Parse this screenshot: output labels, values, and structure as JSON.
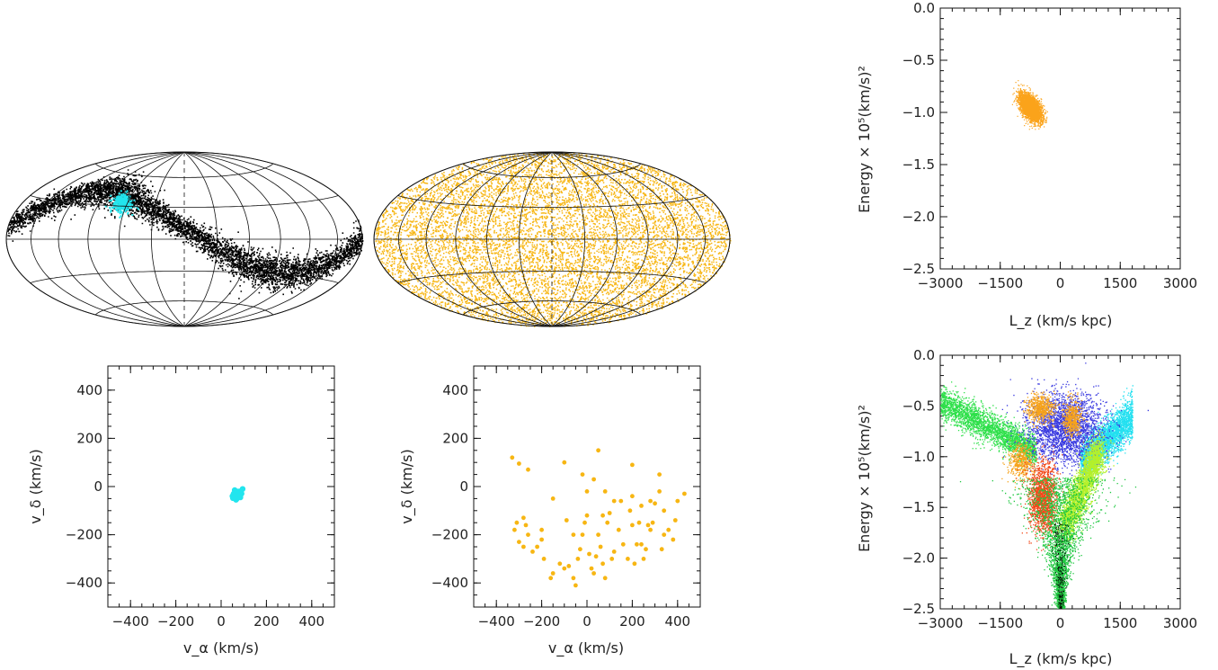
{
  "colors": {
    "black": "#000000",
    "cyan": "#22e5ee",
    "orange": "#f7b613",
    "dark_orange": "#fba31a"
  },
  "chart_data": [
    {
      "id": "sky-map-left",
      "type": "scatter",
      "projection": "Aitoff/Hammer equal-area all-sky",
      "grid": true,
      "series": [
        {
          "color": "#000000",
          "density": "dense",
          "shape": "sinusoidal stream band",
          "lon_lat_track": [
            [
              -180,
              10
            ],
            [
              -150,
              25
            ],
            [
              -120,
              40
            ],
            [
              -90,
              44
            ],
            [
              -60,
              40
            ],
            [
              -30,
              28
            ],
            [
              0,
              10
            ],
            [
              30,
              -8
            ],
            [
              60,
              -22
            ],
            [
              90,
              -28
            ],
            [
              120,
              -28
            ],
            [
              150,
              -18
            ],
            [
              180,
              2
            ]
          ]
        },
        {
          "color": "#22e5ee",
          "density": "small clump",
          "lon_lat_center": [
            -67,
            33
          ]
        }
      ]
    },
    {
      "id": "sky-map-right",
      "type": "scatter",
      "projection": "Aitoff/Hammer equal-area all-sky",
      "grid": true,
      "series": [
        {
          "color": "#f7b613",
          "density": "uniform over full sky"
        }
      ]
    },
    {
      "id": "velocity-left",
      "type": "scatter",
      "xlabel": "v_α (km/s)",
      "ylabel": "v_δ (km/s)",
      "xlim": [
        -500,
        500
      ],
      "ylim": [
        -500,
        500
      ],
      "xticks": [
        "−400",
        "−200",
        "0",
        "200",
        "400"
      ],
      "yticks": [
        "−400",
        "−200",
        "0",
        "200",
        "400"
      ],
      "series": [
        {
          "color": "#22e5ee",
          "points": [
            [
              55,
              -30
            ],
            [
              65,
              -25
            ],
            [
              75,
              -35
            ],
            [
              60,
              -45
            ],
            [
              80,
              -20
            ],
            [
              70,
              -50
            ],
            [
              50,
              -40
            ],
            [
              90,
              -30
            ],
            [
              85,
              -45
            ],
            [
              60,
              -15
            ],
            [
              72,
              -38
            ],
            [
              66,
              -55
            ],
            [
              58,
              -28
            ],
            [
              95,
              -10
            ],
            [
              78,
              -42
            ],
            [
              62,
              -33
            ],
            [
              88,
              -25
            ],
            [
              70,
              -20
            ],
            [
              52,
              -48
            ],
            [
              83,
              -36
            ]
          ]
        }
      ]
    },
    {
      "id": "velocity-right",
      "type": "scatter",
      "xlabel": "v_α (km/s)",
      "ylabel": "v_δ (km/s)",
      "xlim": [
        -500,
        500
      ],
      "ylim": [
        -500,
        500
      ],
      "xticks": [
        "−400",
        "−200",
        "0",
        "200",
        "400"
      ],
      "yticks": [
        "−400",
        "−200",
        "0",
        "200",
        "400"
      ],
      "series": [
        {
          "color": "#f7b613",
          "points": [
            [
              -330,
              120
            ],
            [
              -300,
              95
            ],
            [
              -260,
              70
            ],
            [
              -310,
              -150
            ],
            [
              -320,
              -180
            ],
            [
              -300,
              -230
            ],
            [
              -280,
              -250
            ],
            [
              -260,
              -200
            ],
            [
              -240,
              -270
            ],
            [
              -220,
              -250
            ],
            [
              -200,
              -220
            ],
            [
              -280,
              -130
            ],
            [
              -270,
              -160
            ],
            [
              -200,
              -180
            ],
            [
              -190,
              -300
            ],
            [
              -160,
              -380
            ],
            [
              -150,
              -360
            ],
            [
              -120,
              -320
            ],
            [
              -100,
              -340
            ],
            [
              -80,
              -330
            ],
            [
              -60,
              -380
            ],
            [
              -50,
              -410
            ],
            [
              -40,
              -300
            ],
            [
              -30,
              -260
            ],
            [
              -20,
              -200
            ],
            [
              -10,
              -150
            ],
            [
              0,
              -120
            ],
            [
              10,
              -280
            ],
            [
              20,
              -340
            ],
            [
              30,
              -360
            ],
            [
              40,
              -290
            ],
            [
              50,
              -200
            ],
            [
              60,
              -250
            ],
            [
              70,
              -320
            ],
            [
              80,
              -380
            ],
            [
              90,
              -150
            ],
            [
              100,
              -110
            ],
            [
              110,
              -300
            ],
            [
              120,
              -270
            ],
            [
              140,
              -180
            ],
            [
              160,
              -240
            ],
            [
              180,
              -300
            ],
            [
              190,
              -100
            ],
            [
              200,
              -160
            ],
            [
              210,
              -320
            ],
            [
              220,
              -240
            ],
            [
              240,
              -240
            ],
            [
              250,
              -300
            ],
            [
              260,
              -260
            ],
            [
              280,
              -180
            ],
            [
              290,
              -150
            ],
            [
              300,
              -70
            ],
            [
              320,
              -20
            ],
            [
              330,
              -260
            ],
            [
              340,
              -200
            ],
            [
              360,
              -180
            ],
            [
              380,
              -220
            ],
            [
              390,
              -140
            ],
            [
              400,
              -60
            ],
            [
              430,
              -30
            ],
            [
              -100,
              100
            ],
            [
              -20,
              50
            ],
            [
              30,
              30
            ],
            [
              50,
              150
            ],
            [
              80,
              -20
            ],
            [
              120,
              -60
            ],
            [
              200,
              90
            ],
            [
              240,
              -80
            ],
            [
              270,
              -160
            ],
            [
              320,
              50
            ],
            [
              -150,
              -50
            ],
            [
              -90,
              -140
            ],
            [
              -60,
              -200
            ],
            [
              0,
              -20
            ],
            [
              70,
              -120
            ],
            [
              150,
              -60
            ],
            [
              200,
              -40
            ],
            [
              230,
              -150
            ],
            [
              280,
              -60
            ],
            [
              340,
              -100
            ]
          ]
        }
      ]
    },
    {
      "id": "energy-top",
      "type": "scatter",
      "xlabel": "L_z (km/s kpc)",
      "ylabel": "Energy × 10⁵(km/s)²",
      "xlim": [
        -3000,
        3000
      ],
      "ylim": [
        -2.5,
        0.0
      ],
      "xticks": [
        "−3000",
        "−1500",
        "0",
        "1500",
        "3000"
      ],
      "yticks": [
        "0.0",
        "−0.5",
        "−1.0",
        "−1.5",
        "−2.0",
        "−2.5"
      ],
      "series": [
        {
          "color": "#fba31a",
          "cluster": {
            "lz_center": -750,
            "e_center": -0.95,
            "lz_spread": 350,
            "e_spread": 0.15
          }
        }
      ]
    },
    {
      "id": "energy-bottom",
      "type": "scatter",
      "xlabel": "L_z (km/s kpc)",
      "ylabel": "Energy × 10⁵(km/s)²",
      "xlim": [
        -3000,
        3000
      ],
      "ylim": [
        -2.5,
        0.0
      ],
      "xticks": [
        "−3000",
        "−1500",
        "0",
        "1500",
        "3000"
      ],
      "yticks": [
        "0.0",
        "−0.5",
        "−1.0",
        "−1.5",
        "−2.0",
        "−2.5"
      ],
      "series": [
        {
          "color": "#2ee04a",
          "region": "left wing",
          "lz": [
            -3000,
            -600
          ],
          "e": [
            -0.9,
            -0.4
          ]
        },
        {
          "color": "#22e0f0",
          "region": "right wing",
          "lz": [
            500,
            1800
          ],
          "e": [
            -1.1,
            -0.5
          ]
        },
        {
          "color": "#3a3ae0",
          "region": "upper middle",
          "lz": [
            -600,
            1200
          ],
          "e": [
            -1.0,
            -0.35
          ]
        },
        {
          "color": "#f6a21a",
          "region": "orange blobs",
          "lz": [
            -900,
            400
          ],
          "e": [
            -1.1,
            -0.45
          ]
        },
        {
          "color": "#f24a1a",
          "region": "red core",
          "lz": [
            -800,
            -100
          ],
          "e": [
            -1.7,
            -1.1
          ]
        },
        {
          "color": "#b4f02a",
          "region": "yellow-green",
          "lz": [
            -300,
            1100
          ],
          "e": [
            -1.8,
            -0.9
          ]
        },
        {
          "color": "#1fc840",
          "region": "funnel",
          "lz": [
            -400,
            400
          ],
          "e": [
            -2.5,
            -1.2
          ]
        }
      ]
    }
  ]
}
